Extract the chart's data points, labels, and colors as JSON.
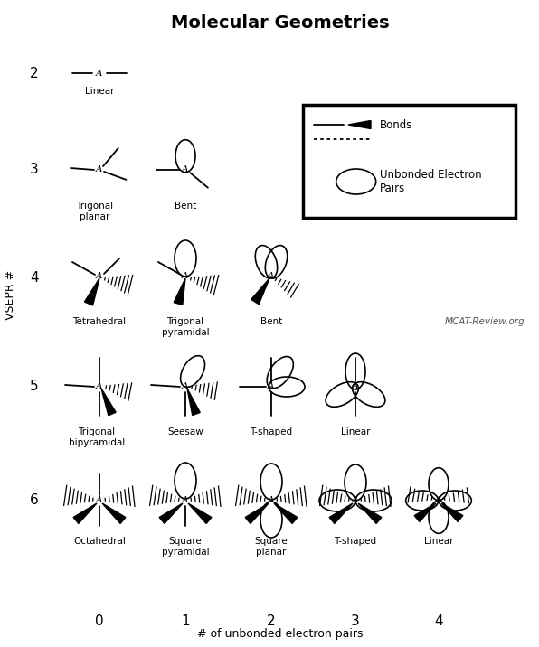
{
  "title": "Molecular Geometries",
  "xlabel": "# of unbonded electron pairs",
  "ylabel": "VSEPR #",
  "background": "#ffffff",
  "title_fontsize": 14,
  "label_fontsize": 9,
  "watermark": "MCAT-Review.org",
  "legend_bonds_text": "Bonds",
  "legend_unbonded_text": "Unbonded Electron\nPairs"
}
